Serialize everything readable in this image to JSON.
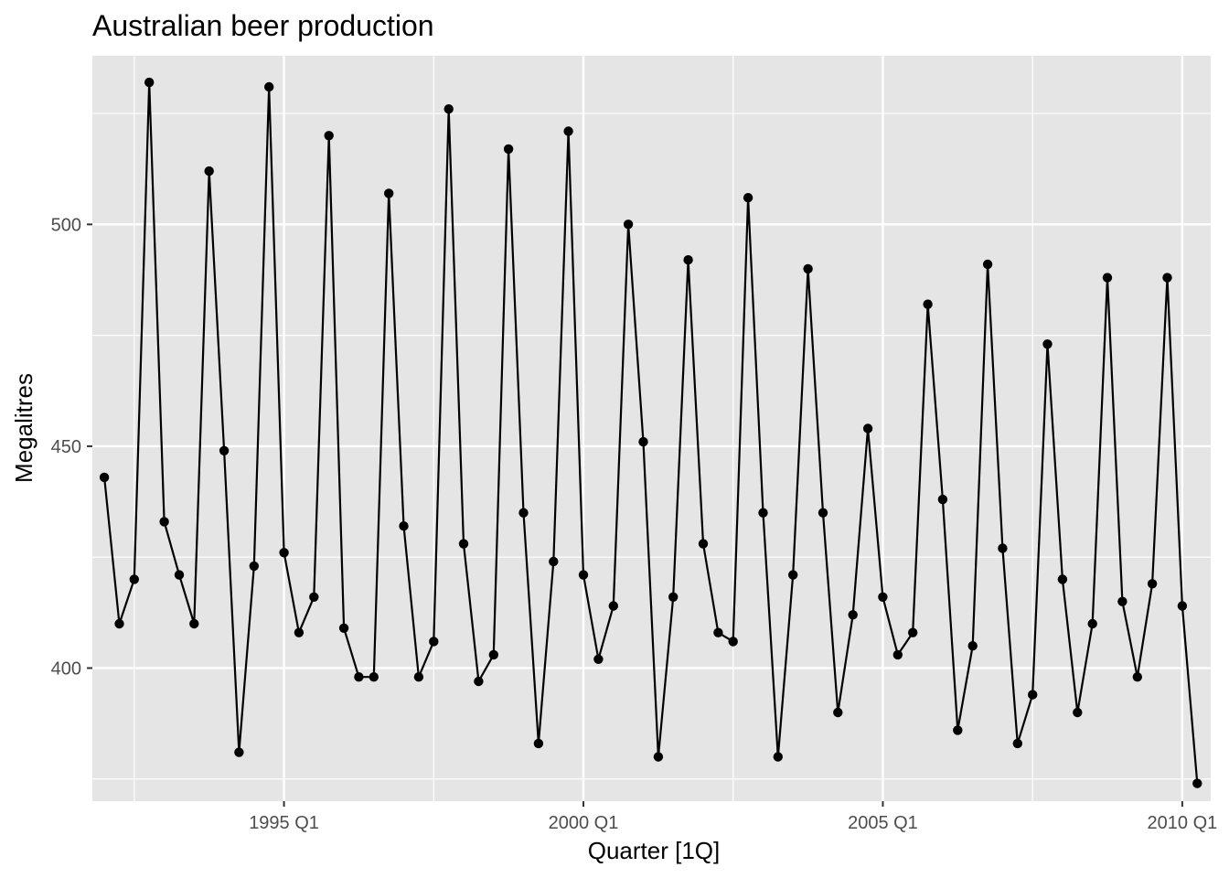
{
  "chart_data": {
    "type": "line",
    "title": "Australian beer production",
    "xlabel": "Quarter [1Q]",
    "ylabel": "Megalitres",
    "grid": true,
    "markers": true,
    "line_color": "#000000",
    "panel_background": "#e5e5e5",
    "grid_color": "#ffffff",
    "x_start": "1992 Q1",
    "x_end": "2010 Q2",
    "xlim": [
      "1991 Q4",
      "2010 Q3"
    ],
    "ylim": [
      370,
      538
    ],
    "x_ticks": [
      "1995 Q1",
      "2000 Q1",
      "2005 Q1",
      "2010 Q1"
    ],
    "y_ticks": [
      400,
      450,
      500
    ],
    "series": [
      {
        "values": [
          443,
          410,
          420,
          532,
          433,
          421,
          410,
          512,
          449,
          381,
          423,
          531,
          426,
          408,
          416,
          520,
          409,
          398,
          398,
          507,
          432,
          398,
          406,
          526,
          428,
          397,
          403,
          517,
          435,
          383,
          424,
          521,
          421,
          402,
          414,
          500,
          451,
          380,
          416,
          492,
          428,
          408,
          406,
          506,
          435,
          380,
          421,
          490,
          435,
          390,
          412,
          454,
          416,
          403,
          408,
          482,
          438,
          386,
          405,
          491,
          427,
          383,
          394,
          473,
          420,
          390,
          410,
          488,
          415,
          398,
          419,
          488,
          414,
          374
        ]
      }
    ]
  }
}
